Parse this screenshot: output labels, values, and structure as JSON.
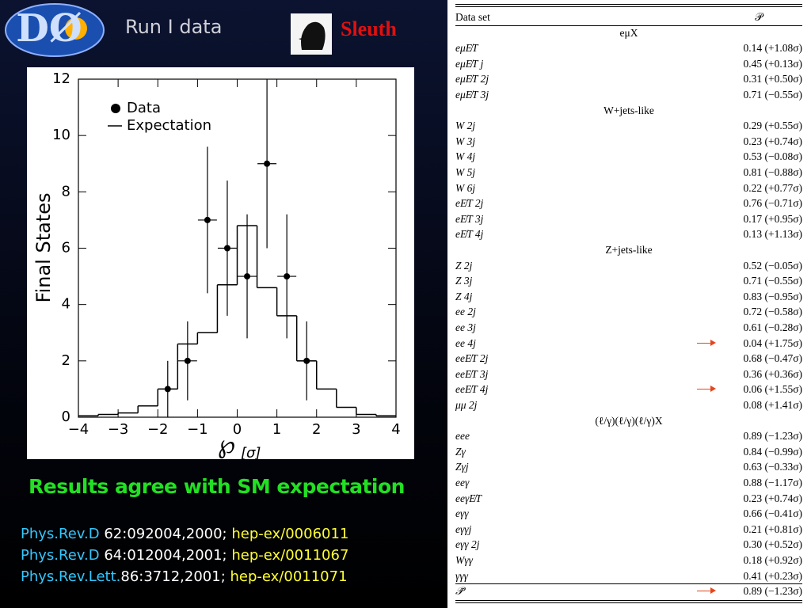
{
  "header": {
    "logo": "DØ",
    "subtitle": "Run I data",
    "tool": "Sleuth"
  },
  "chart_data": {
    "type": "errorbar-histogram",
    "ylabel": "Final States",
    "xlabel": "℘",
    "xlabel_sub": "[σ]",
    "xlim": [
      -4,
      4
    ],
    "xticks": [
      {
        "value": -4,
        "label": "−4"
      },
      {
        "value": -3,
        "label": "−3"
      },
      {
        "value": -2,
        "label": "−2"
      },
      {
        "value": -1,
        "label": "−1"
      },
      0,
      1,
      2,
      3,
      4
    ],
    "ylim": [
      0,
      12
    ],
    "yticks": [
      0,
      2,
      4,
      6,
      8,
      10,
      12
    ],
    "series": [
      {
        "name": "Data",
        "color": "#000000",
        "x": [
          -1.75,
          -1.25,
          -0.75,
          -0.25,
          0.25,
          0.75,
          1.25,
          1.75
        ],
        "values": [
          1,
          2,
          7,
          6,
          5,
          9,
          5,
          2
        ],
        "errors": [
          1,
          1.4,
          2.6,
          2.4,
          2.2,
          3,
          2.2,
          1.4
        ]
      },
      {
        "name": "Expectation",
        "color": "#000000",
        "bins": [
          -4,
          -3.5,
          -3,
          -2.5,
          -2,
          -1.5,
          -1,
          -0.5,
          0,
          0.5,
          1,
          1.5,
          2,
          2.5,
          3,
          3.5,
          4
        ],
        "values": [
          0.05,
          0.1,
          0.15,
          0.4,
          1.0,
          2.6,
          3.0,
          4.7,
          6.8,
          4.6,
          3.6,
          2.0,
          1.0,
          0.35,
          0.1,
          0.05
        ]
      }
    ]
  },
  "conclusion": "Results agree with SM expectation",
  "references": [
    {
      "journal": "Phys.Rev.D",
      "citation": " 62:092004,2000;",
      "arxiv": " hep-ex/0006011"
    },
    {
      "journal": "Phys.Rev.D",
      "citation": " 64:012004,2001;",
      "arxiv": " hep-ex/0011067"
    },
    {
      "journal": "Phys.Rev.Lett.",
      "citation": "86:3712,2001;",
      "arxiv": " hep-ex/0011071"
    }
  ],
  "table": {
    "header": [
      "Data set",
      "𝒫"
    ],
    "sections": [
      {
        "title": "eμX",
        "rows": [
          {
            "name": "eμE̸T",
            "value": "0.14 (+1.08σ)"
          },
          {
            "name": "eμE̸T j",
            "value": "0.45 (+0.13σ)"
          },
          {
            "name": "eμE̸T 2j",
            "value": "0.31 (+0.50σ)"
          },
          {
            "name": "eμE̸T 3j",
            "value": "0.71 (−0.55σ)"
          }
        ]
      },
      {
        "title": "W+jets-like",
        "rows": [
          {
            "name": "W 2j",
            "value": "0.29 (+0.55σ)"
          },
          {
            "name": "W 3j",
            "value": "0.23 (+0.74σ)"
          },
          {
            "name": "W 4j",
            "value": "0.53 (−0.08σ)"
          },
          {
            "name": "W 5j",
            "value": "0.81 (−0.88σ)"
          },
          {
            "name": "W 6j",
            "value": "0.22 (+0.77σ)"
          },
          {
            "name": "eE̸T 2j",
            "value": "0.76 (−0.71σ)"
          },
          {
            "name": "eE̸T 3j",
            "value": "0.17 (+0.95σ)"
          },
          {
            "name": "eE̸T 4j",
            "value": "0.13 (+1.13σ)"
          }
        ]
      },
      {
        "title": "Z+jets-like",
        "rows": [
          {
            "name": "Z 2j",
            "value": "0.52 (−0.05σ)"
          },
          {
            "name": "Z 3j",
            "value": "0.71 (−0.55σ)"
          },
          {
            "name": "Z 4j",
            "value": "0.83 (−0.95σ)"
          },
          {
            "name": "ee 2j",
            "value": "0.72 (−0.58σ)"
          },
          {
            "name": "ee 3j",
            "value": "0.61 (−0.28σ)"
          },
          {
            "name": "ee 4j",
            "value": "0.04 (+1.75σ)",
            "marked": true
          },
          {
            "name": "eeE̸T 2j",
            "value": "0.68 (−0.47σ)"
          },
          {
            "name": "eeE̸T 3j",
            "value": "0.36 (+0.36σ)"
          },
          {
            "name": "eeE̸T 4j",
            "value": "0.06 (+1.55σ)",
            "marked": true
          },
          {
            "name": "μμ 2j",
            "value": "0.08 (+1.41σ)"
          }
        ]
      },
      {
        "title": "(ℓ/γ)(ℓ/γ)(ℓ/γ)X",
        "rows": [
          {
            "name": "eee",
            "value": "0.89 (−1.23σ)"
          },
          {
            "name": "Zγ",
            "value": "0.84 (−0.99σ)"
          },
          {
            "name": "Zγj",
            "value": "0.63 (−0.33σ)"
          },
          {
            "name": "eeγ",
            "value": "0.88 (−1.17σ)"
          },
          {
            "name": "eeγE̸T",
            "value": "0.23 (+0.74σ)"
          },
          {
            "name": "eγγ",
            "value": "0.66 (−0.41σ)"
          },
          {
            "name": "eγγj",
            "value": "0.21 (+0.81σ)"
          },
          {
            "name": "eγγ 2j",
            "value": "0.30 (+0.52σ)"
          },
          {
            "name": "Wγγ",
            "value": "0.18 (+0.92σ)"
          },
          {
            "name": "γγγ",
            "value": "0.41 (+0.23σ)"
          }
        ]
      }
    ],
    "total": {
      "name": "𝒫̃",
      "value": "0.89 (−1.23σ)",
      "marked": true
    }
  }
}
